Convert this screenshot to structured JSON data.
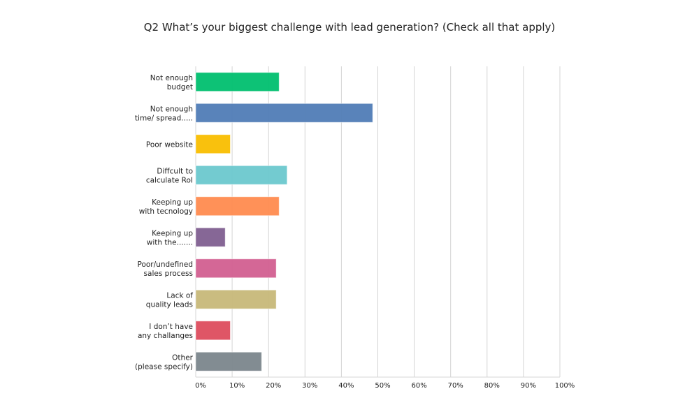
{
  "chart_data": {
    "type": "bar",
    "orientation": "horizontal",
    "title": "Q2 What’s your biggest challenge with lead generation? (Check all that apply)",
    "categories": [
      [
        "Not enough",
        "budget"
      ],
      [
        "Not enough",
        "time/ spread....."
      ],
      [
        "Poor website"
      ],
      [
        "Diffcult to",
        "calculate RoI"
      ],
      [
        "Keeping up",
        "with tecnology"
      ],
      [
        "Keeping up",
        "with the......."
      ],
      [
        "Poor/undefined",
        "sales process"
      ],
      [
        "Lack of",
        "quality leads"
      ],
      [
        "I don’t have",
        "any challanges"
      ],
      [
        "Other",
        "(please specify)"
      ]
    ],
    "values": [
      22.9,
      48.6,
      9.5,
      25.1,
      22.9,
      8.1,
      22.1,
      22.1,
      9.5,
      18.1
    ],
    "colors": [
      "#00bf6f",
      "#507cb6",
      "#f9be00",
      "#6bc8cd",
      "#ff8b4f",
      "#7f5f90",
      "#d25f90",
      "#c7b879",
      "#dd4d5e",
      "#7b868c"
    ],
    "xlim": [
      0,
      100
    ],
    "xticks": [
      "0%",
      "10%",
      "20%",
      "30%",
      "40%",
      "50%",
      "60%",
      "70%",
      "80%",
      "90%",
      "100%"
    ],
    "grid": true,
    "unit": "%"
  }
}
